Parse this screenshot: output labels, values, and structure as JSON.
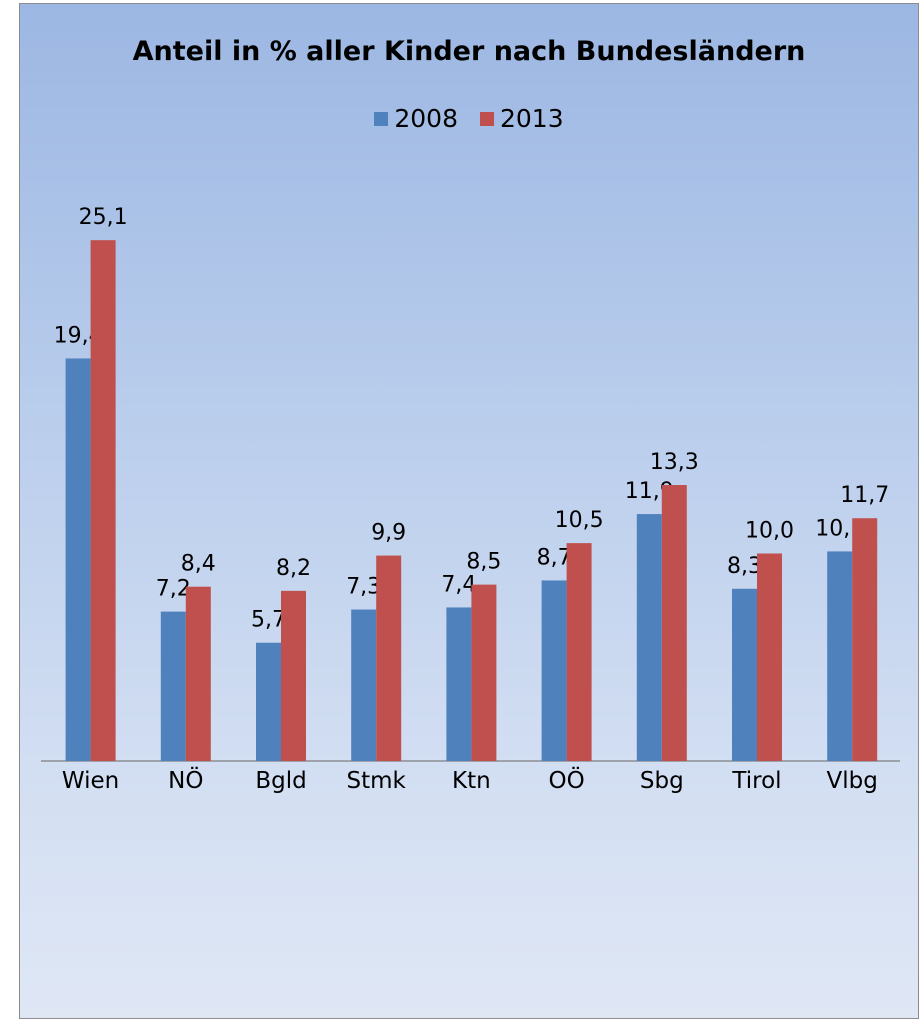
{
  "chart_data": {
    "type": "bar",
    "title": "Anteil in % aller Kinder nach Bundesländern",
    "categories": [
      "Wien",
      "NÖ",
      "Bgld",
      "Stmk",
      "Ktn",
      "OÖ",
      "Sbg",
      "Tirol",
      "Vlbg"
    ],
    "series": [
      {
        "name": "2008",
        "color": "#4f81bd",
        "values": [
          19.4,
          7.2,
          5.7,
          7.3,
          7.4,
          8.7,
          11.9,
          8.3,
          10.1
        ],
        "labels": [
          "19,4",
          "7,2",
          "5,7",
          "7,3",
          "7,4",
          "8,7",
          "11,9",
          "8,3",
          "10,1"
        ]
      },
      {
        "name": "2013",
        "color": "#c0504d",
        "values": [
          25.1,
          8.4,
          8.2,
          9.9,
          8.5,
          10.5,
          13.3,
          10.0,
          11.7
        ],
        "labels": [
          "25,1",
          "8,4",
          "8,2",
          "9,9",
          "8,5",
          "10,5",
          "13,3",
          "10,0",
          "11,7"
        ]
      }
    ],
    "ylim": [
      0,
      30
    ],
    "grid": false,
    "legend_position": "top"
  }
}
